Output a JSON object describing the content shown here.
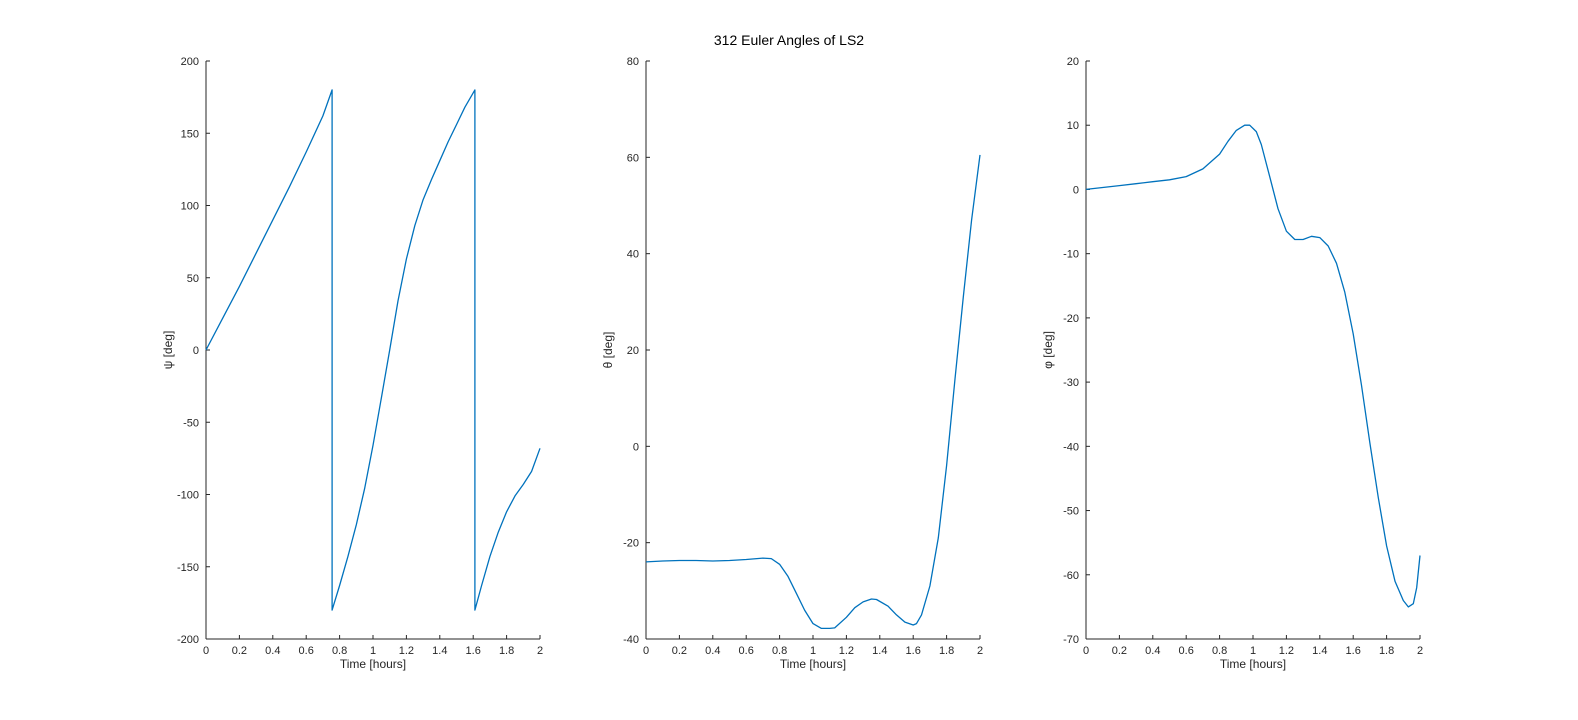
{
  "figure": {
    "title": "312 Euler Angles of LS2"
  },
  "colors": {
    "line": "#0072BD",
    "axis": "#262626",
    "background": "#ffffff"
  },
  "chart_data": [
    {
      "type": "line",
      "xlabel": "Time [hours]",
      "ylabel": "ψ [deg]",
      "xlim": [
        0,
        2
      ],
      "ylim": [
        -200,
        200
      ],
      "xticks": [
        0,
        0.2,
        0.4,
        0.6,
        0.8,
        1,
        1.2,
        1.4,
        1.6,
        1.8,
        2
      ],
      "yticks": [
        -200,
        -150,
        -100,
        -50,
        0,
        50,
        100,
        150,
        200
      ],
      "grid": false,
      "series": [
        {
          "x": [
            0,
            0.1,
            0.2,
            0.3,
            0.4,
            0.5,
            0.6,
            0.7,
            0.755,
            0.755,
            0.8,
            0.85,
            0.9,
            0.95,
            1.0,
            1.05,
            1.1,
            1.15,
            1.2,
            1.25,
            1.3,
            1.35,
            1.4,
            1.45,
            1.5,
            1.55,
            1.61,
            1.61,
            1.65,
            1.7,
            1.75,
            1.8,
            1.85,
            1.9,
            1.95,
            2.0
          ],
          "y": [
            0,
            22,
            44,
            67,
            90,
            113,
            137,
            162,
            180,
            -180,
            -163,
            -143,
            -121,
            -96,
            -66,
            -33,
            0,
            34,
            63,
            86,
            104,
            118,
            131,
            144,
            156,
            168,
            180,
            -180,
            -163,
            -143,
            -126,
            -112,
            -101,
            -93,
            -84,
            -68
          ]
        }
      ]
    },
    {
      "type": "line",
      "xlabel": "Time [hours]",
      "ylabel": "θ [deg]",
      "xlim": [
        0,
        2
      ],
      "ylim": [
        -40,
        80
      ],
      "xticks": [
        0,
        0.2,
        0.4,
        0.6,
        0.8,
        1,
        1.2,
        1.4,
        1.6,
        1.8,
        2
      ],
      "yticks": [
        -40,
        -20,
        0,
        20,
        40,
        60,
        80
      ],
      "grid": false,
      "series": [
        {
          "x": [
            0,
            0.1,
            0.2,
            0.3,
            0.4,
            0.5,
            0.6,
            0.7,
            0.75,
            0.8,
            0.85,
            0.9,
            0.95,
            1.0,
            1.05,
            1.1,
            1.13,
            1.2,
            1.25,
            1.3,
            1.35,
            1.38,
            1.45,
            1.5,
            1.55,
            1.6,
            1.62,
            1.65,
            1.7,
            1.75,
            1.8,
            1.85,
            1.9,
            1.95,
            2.0
          ],
          "y": [
            -24,
            -23.8,
            -23.7,
            -23.7,
            -23.8,
            -23.7,
            -23.5,
            -23.2,
            -23.3,
            -24.5,
            -27,
            -30.5,
            -34,
            -36.8,
            -37.8,
            -37.8,
            -37.7,
            -35.5,
            -33.5,
            -32.3,
            -31.7,
            -31.8,
            -33.2,
            -35,
            -36.5,
            -37.1,
            -36.8,
            -35,
            -29,
            -19,
            -4,
            14,
            31,
            47,
            60.5
          ]
        }
      ]
    },
    {
      "type": "line",
      "xlabel": "Time [hours]",
      "ylabel": "φ [deg]",
      "xlim": [
        0,
        2
      ],
      "ylim": [
        -70,
        20
      ],
      "xticks": [
        0,
        0.2,
        0.4,
        0.6,
        0.8,
        1,
        1.2,
        1.4,
        1.6,
        1.8,
        2
      ],
      "yticks": [
        -70,
        -60,
        -50,
        -40,
        -30,
        -20,
        -10,
        0,
        10,
        20
      ],
      "grid": false,
      "series": [
        {
          "x": [
            0,
            0.1,
            0.2,
            0.3,
            0.4,
            0.5,
            0.6,
            0.7,
            0.8,
            0.85,
            0.9,
            0.95,
            0.98,
            1.02,
            1.05,
            1.1,
            1.15,
            1.2,
            1.25,
            1.3,
            1.35,
            1.4,
            1.45,
            1.5,
            1.55,
            1.6,
            1.65,
            1.7,
            1.75,
            1.8,
            1.85,
            1.9,
            1.93,
            1.96,
            1.98,
            2.0
          ],
          "y": [
            0,
            0.3,
            0.6,
            0.9,
            1.2,
            1.5,
            2,
            3.2,
            5.5,
            7.5,
            9.2,
            10,
            10,
            9,
            7,
            2,
            -3,
            -6.5,
            -7.8,
            -7.8,
            -7.3,
            -7.5,
            -8.8,
            -11.5,
            -16,
            -22.5,
            -30.5,
            -39.5,
            -48,
            -55.5,
            -61,
            -64,
            -65,
            -64.5,
            -62,
            -57
          ]
        }
      ]
    }
  ]
}
